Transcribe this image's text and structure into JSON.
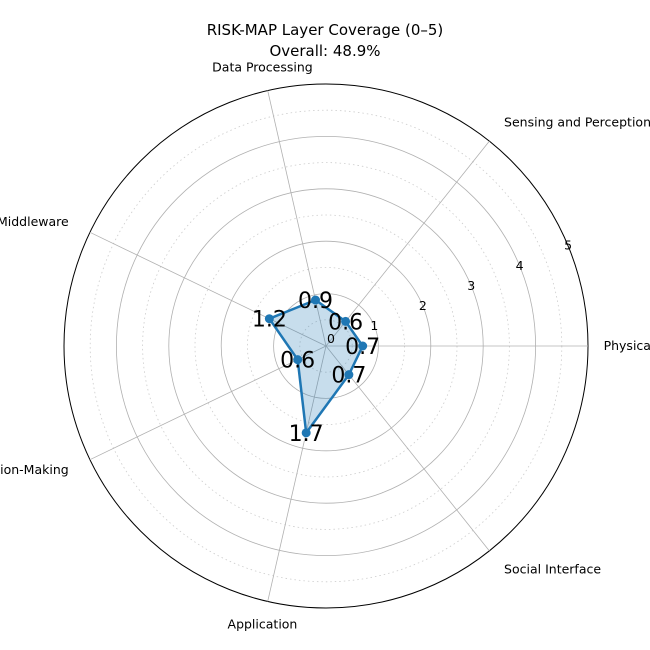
{
  "chart_data": {
    "type": "radar",
    "title": "RISK-MAP Layer Coverage (0–5)",
    "subtitle": "Overall: 48.9%",
    "categories": [
      "Physical",
      "Sensing and Perception",
      "Data Processing",
      "Middleware",
      "Decision-Making",
      "Application",
      "Social Interface"
    ],
    "values": [
      0.7,
      0.6,
      0.9,
      1.2,
      0.6,
      1.7,
      0.7
    ],
    "value_labels": [
      "0.7",
      "0.6",
      "0.9",
      "1.2",
      "0.6",
      "1.7",
      "0.7"
    ],
    "r_ticks": [
      "0",
      "1",
      "2",
      "3",
      "4",
      "5"
    ],
    "r_ticks_visible": [
      "1",
      "2",
      "3",
      "4",
      "5"
    ],
    "rlim": [
      0,
      5
    ],
    "grid": true,
    "minor_grid": true,
    "line_color": "#1f77b4",
    "fill_color": "#1f77b4",
    "fill_opacity": 0.25
  }
}
